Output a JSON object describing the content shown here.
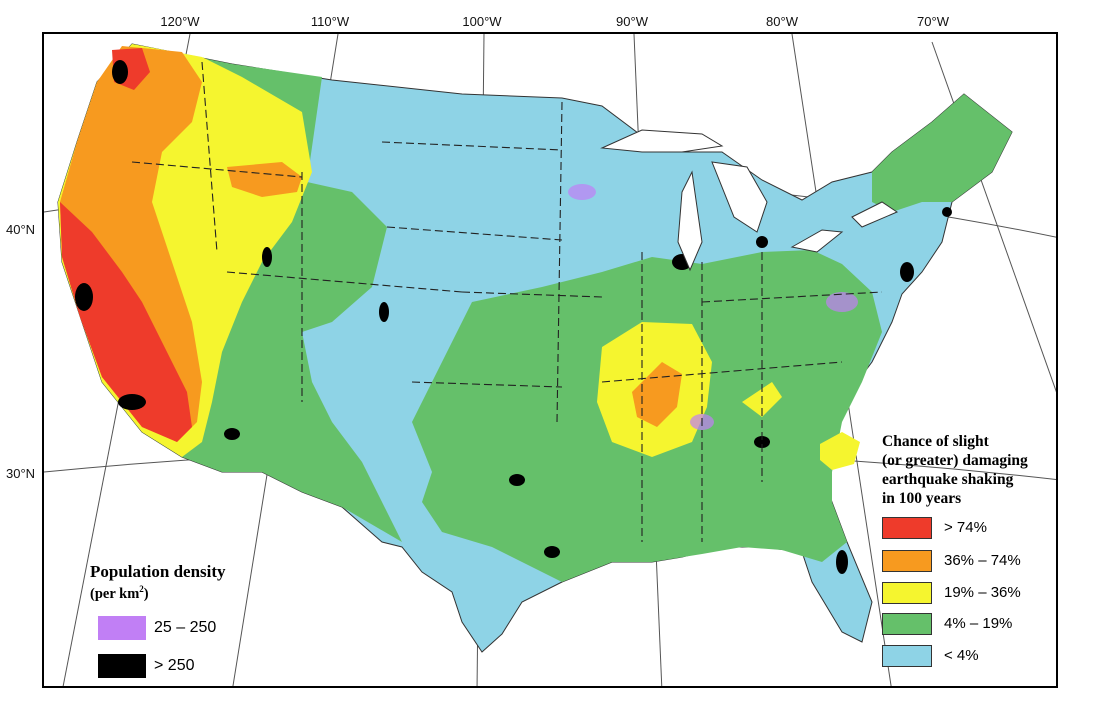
{
  "graticule": {
    "longitudes": [
      "120°W",
      "110°W",
      "100°W",
      "90°W",
      "80°W",
      "70°W"
    ],
    "latitudes": [
      "40°N",
      "30°N"
    ]
  },
  "hazard_legend": {
    "title_lines": [
      "Chance of slight",
      "(or greater) damaging",
      "earthquake shaking",
      "in 100 years"
    ],
    "classes": [
      {
        "label": "> 74%",
        "color": "#ee3b2b"
      },
      {
        "label": "36% – 74%",
        "color": "#f79a1f"
      },
      {
        "label": "19% – 36%",
        "color": "#f5f52f"
      },
      {
        "label": "4% – 19%",
        "color": "#65c06a"
      },
      {
        "label": "< 4%",
        "color": "#8ed3e6"
      }
    ]
  },
  "population_legend": {
    "title": "Population density",
    "unit_prefix": "(per km",
    "unit_superscript": "2",
    "unit_suffix": ")",
    "classes": [
      {
        "label": "25 – 250",
        "color": "#c17ff5"
      },
      {
        "label": "> 250",
        "color": "#000000"
      }
    ]
  },
  "colors": {
    "neighbor_land": "#ffffff",
    "water": "#ffffff",
    "state_border": "#222222",
    "graticule": "#555555"
  }
}
